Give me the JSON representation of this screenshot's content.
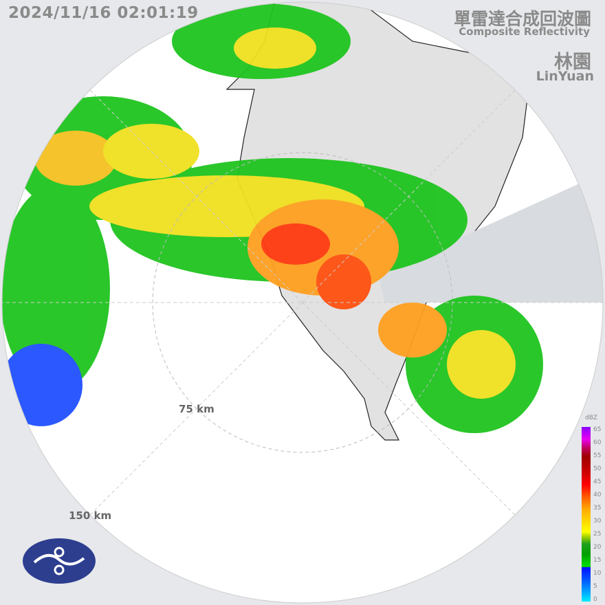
{
  "header": {
    "timestamp": "2024/11/16 02:01:19",
    "title_zh": "單雷達合成回波圖",
    "title_en": "Composite Reflectivity",
    "station_zh": "林園",
    "station_en": "LinYuan"
  },
  "range_rings": [
    {
      "label": "75 km"
    },
    {
      "label": "150 km"
    }
  ],
  "legend": {
    "unit": "dBZ",
    "ticks": [
      "65",
      "60",
      "55",
      "50",
      "45",
      "40",
      "35",
      "30",
      "25",
      "20",
      "15",
      "10",
      "5",
      "0"
    ],
    "colors": {
      "0": "#00eeff",
      "15": "#0010ff",
      "20": "#00d000",
      "30": "#ffff00",
      "40": "#ff5a00",
      "45": "#ff0000",
      "55": "#a00000",
      "60": "#e800f0",
      "65": "#8a00ff"
    }
  },
  "logo": {
    "name": "cwa-logo-icon",
    "color": "#2d3e8f"
  }
}
